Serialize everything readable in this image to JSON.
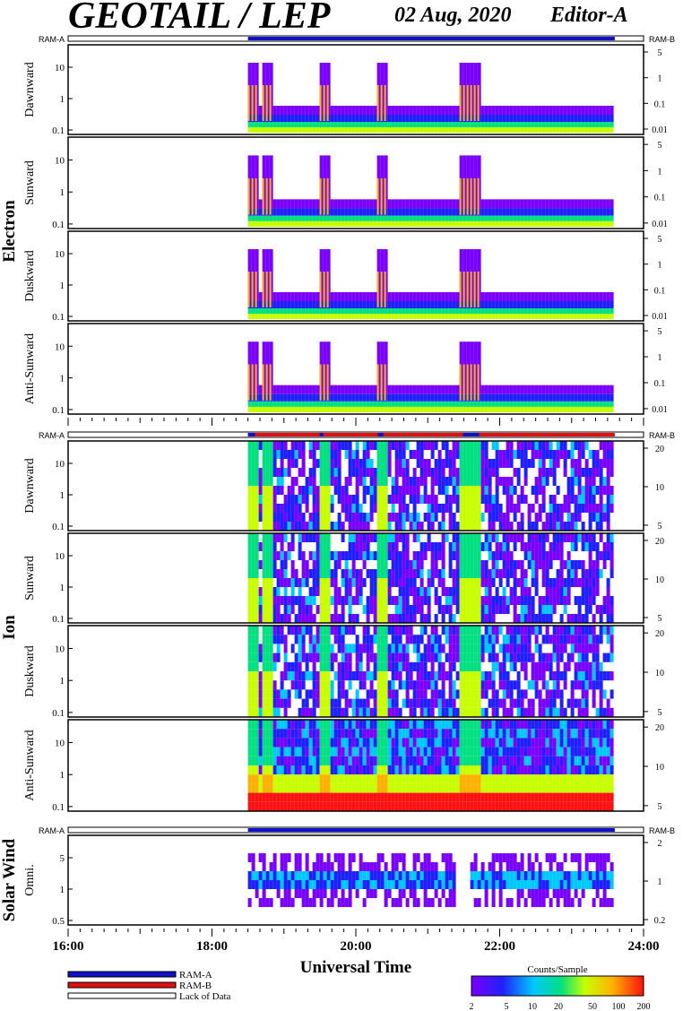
{
  "header": {
    "title": "GEOTAIL / LEP",
    "date": "02 Aug, 2020",
    "editor": "Editor-A"
  },
  "groups": {
    "electron": "Electron",
    "ion": "Ion",
    "solar_wind": "Solar Wind"
  },
  "ram": {
    "a": "RAM-A",
    "b": "RAM-B"
  },
  "legend": {
    "ram_a": "RAM-A",
    "ram_b": "RAM-B",
    "lack": "Lack of Data"
  },
  "colorbar": {
    "title": "Counts/Sample",
    "ticks": [
      "2",
      "5",
      "10",
      "20",
      "50",
      "100",
      "200"
    ]
  },
  "colors": {
    "ram_a": "#1010c8",
    "ram_b": "#e01010",
    "spectrum": [
      "#7a00ff",
      "#2020ff",
      "#00c8ff",
      "#00e080",
      "#c8ff00",
      "#ffb000",
      "#ff1010"
    ]
  },
  "chart_data": {
    "type": "heatmap",
    "xlabel": "Universal Time",
    "x_ticks": [
      "16:00",
      "18:00",
      "20:00",
      "22:00",
      "24:00"
    ],
    "x_range_hours": [
      16,
      24
    ],
    "data_coverage_hours": [
      18.5,
      23.6
    ],
    "panels": [
      {
        "group": "Electron",
        "label": "Dawnward",
        "left_ticks": [
          "10",
          "1",
          "0.1"
        ],
        "right_ticks": [
          "5",
          "1",
          "0.1",
          "0.01"
        ]
      },
      {
        "group": "Electron",
        "label": "Sunward",
        "left_ticks": [
          "10",
          "1",
          "0.1"
        ],
        "right_ticks": [
          "5",
          "1",
          "0.1",
          "0.01"
        ]
      },
      {
        "group": "Electron",
        "label": "Duskward",
        "left_ticks": [
          "10",
          "1",
          "0.1"
        ],
        "right_ticks": [
          "5",
          "1",
          "0.1",
          "0.01"
        ]
      },
      {
        "group": "Electron",
        "label": "Anti-Sunward",
        "left_ticks": [
          "10",
          "1",
          "0.1"
        ],
        "right_ticks": [
          "5",
          "1",
          "0.1",
          "0.01"
        ]
      },
      {
        "group": "Ion",
        "label": "Dawnward",
        "left_ticks": [
          "10",
          "1",
          "0.1"
        ],
        "right_ticks": [
          "20",
          "10",
          "5"
        ]
      },
      {
        "group": "Ion",
        "label": "Sunward",
        "left_ticks": [
          "10",
          "1",
          "0.1"
        ],
        "right_ticks": [
          "20",
          "10",
          "5"
        ]
      },
      {
        "group": "Ion",
        "label": "Duskward",
        "left_ticks": [
          "10",
          "1",
          "0.1"
        ],
        "right_ticks": [
          "20",
          "10",
          "5"
        ]
      },
      {
        "group": "Ion",
        "label": "Anti-Sunward",
        "left_ticks": [
          "10",
          "1",
          "0.1"
        ],
        "right_ticks": [
          "20",
          "10",
          "5"
        ]
      },
      {
        "group": "Solar Wind",
        "label": "Omni.",
        "left_ticks": [
          "5",
          "1",
          "0.5"
        ],
        "right_ticks": [
          "2",
          "1",
          "0.2"
        ]
      }
    ]
  }
}
